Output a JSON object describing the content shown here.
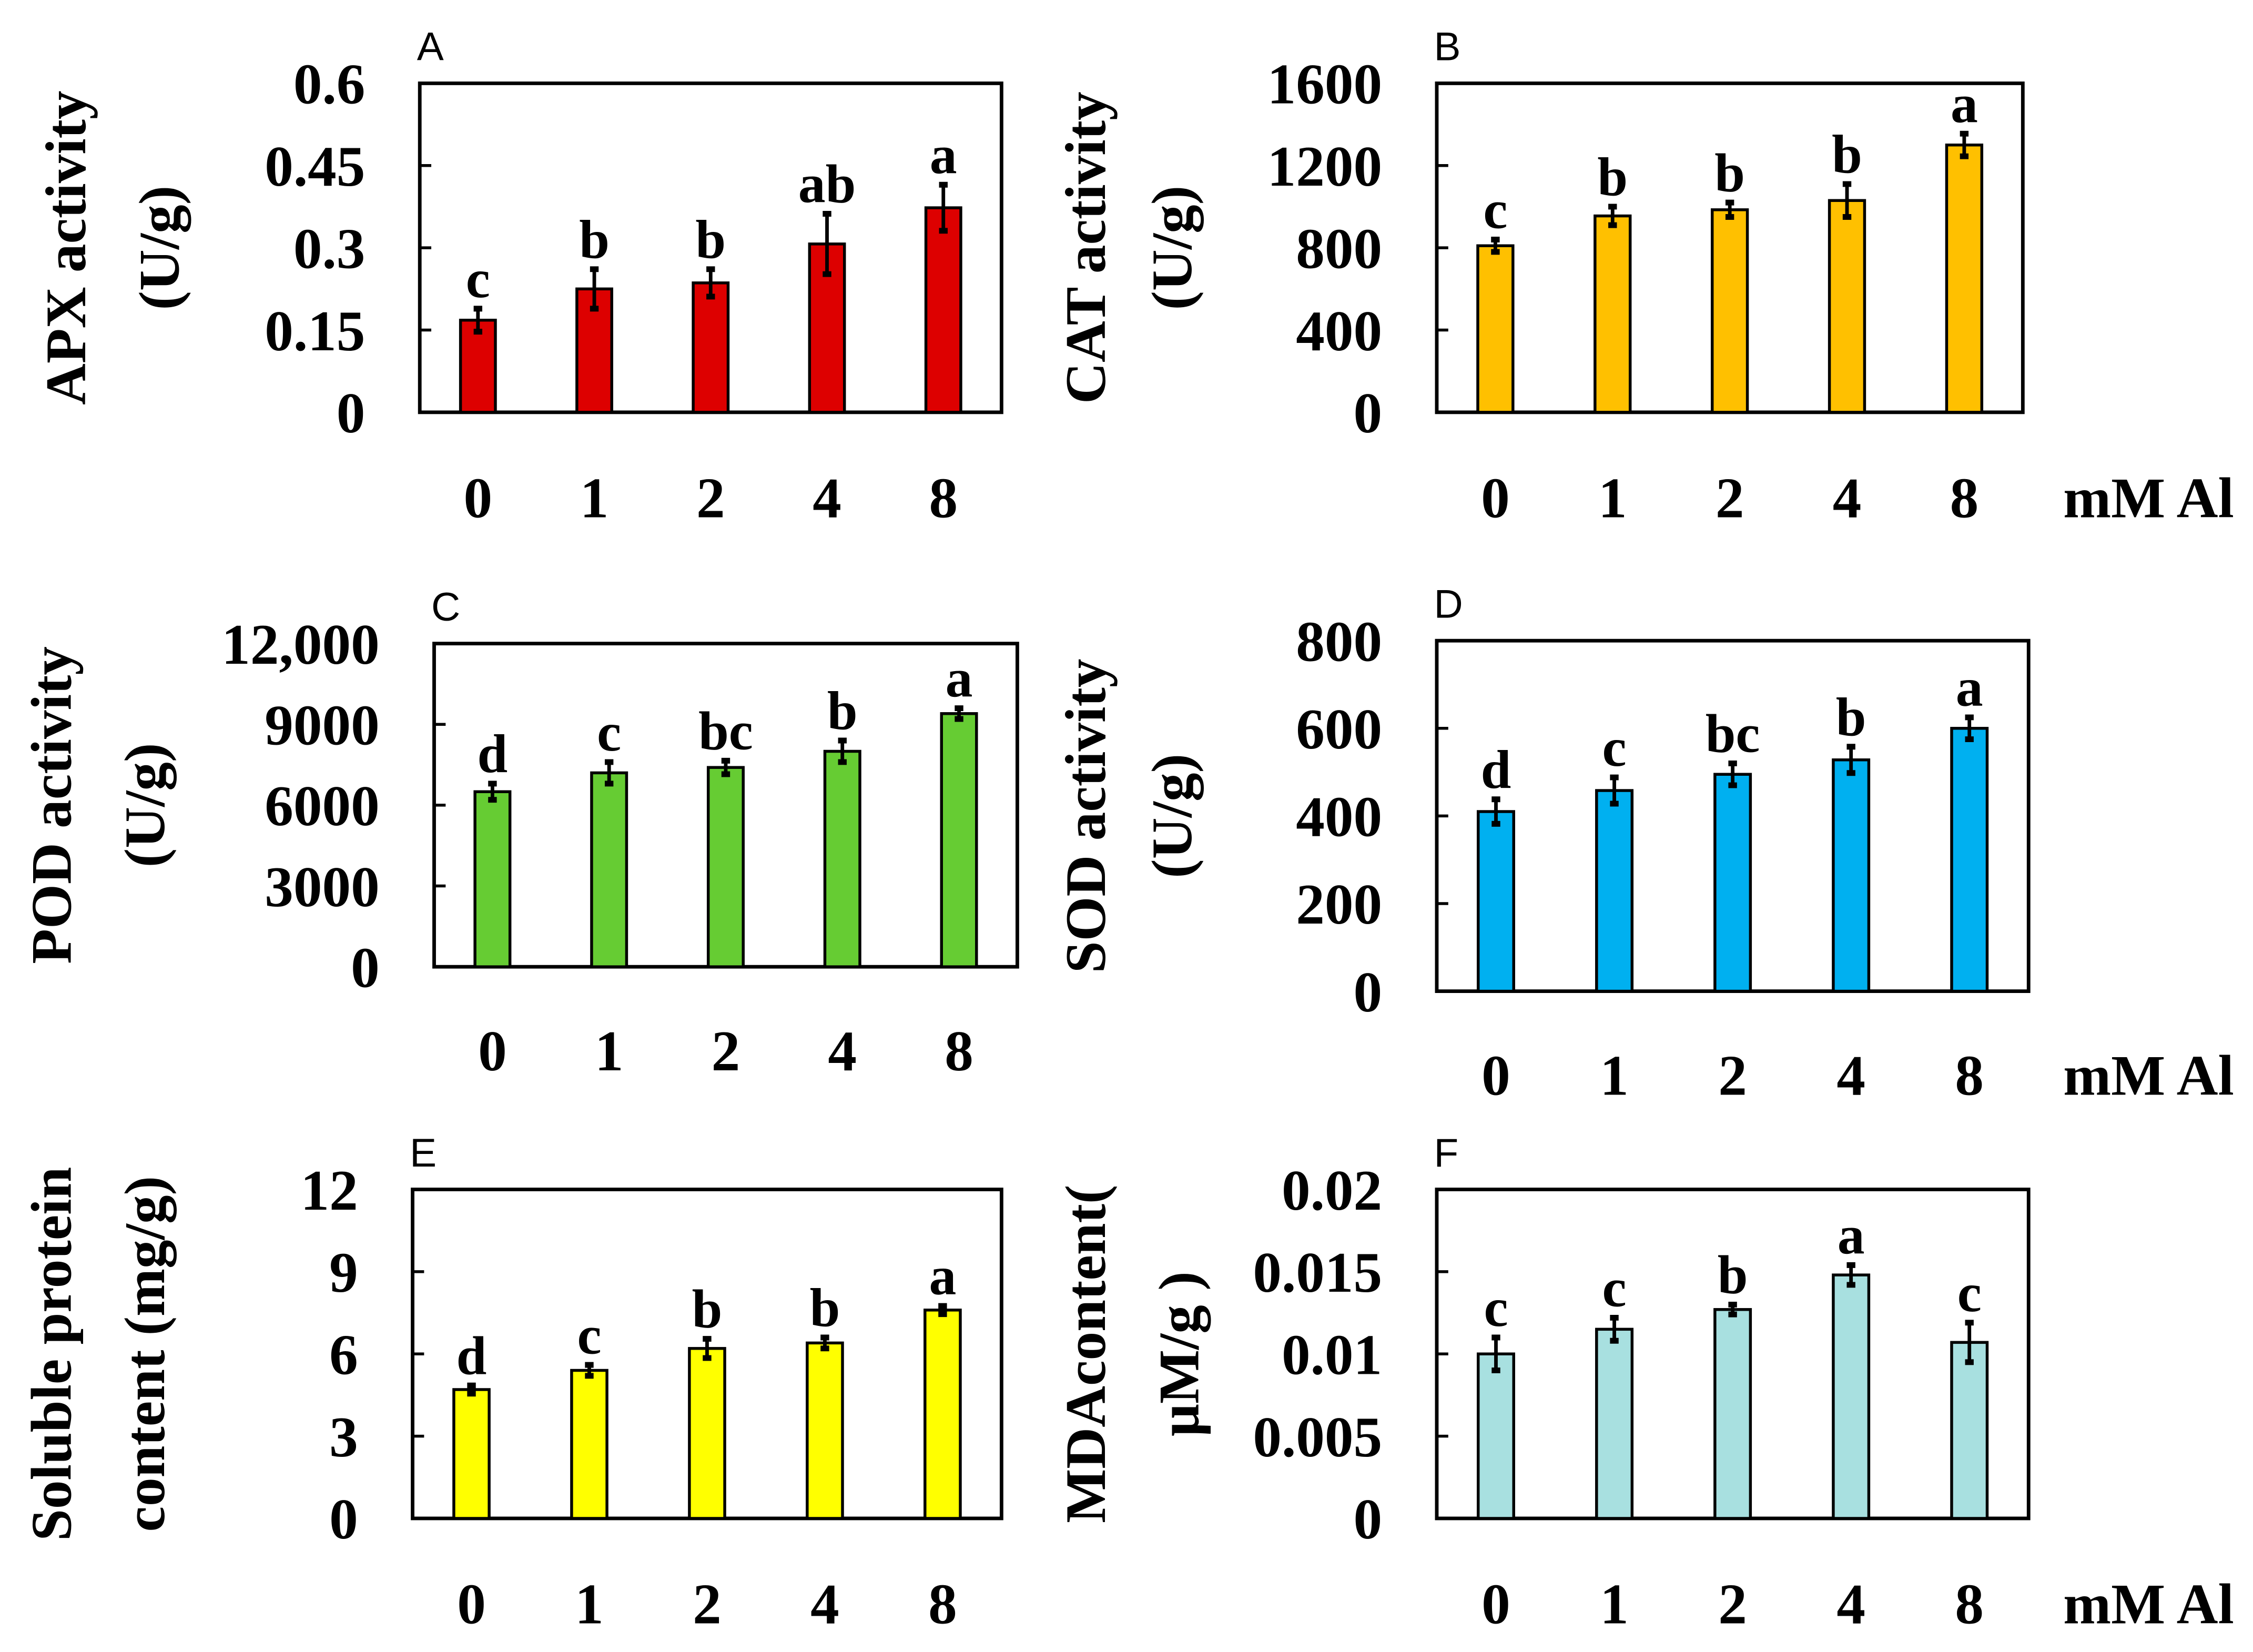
{
  "chart_data": [
    {
      "panel": "A",
      "type": "bar",
      "ylabel": [
        "APX activity",
        "(U/g)"
      ],
      "categories": [
        "0",
        "1",
        "2",
        "4",
        "8"
      ],
      "ylim": [
        0,
        0.6
      ],
      "yticks": [
        "0",
        "0.15",
        "0.3",
        "0.45",
        "0.6"
      ],
      "values": [
        0.168,
        0.225,
        0.236,
        0.307,
        0.373
      ],
      "errors": [
        0.021,
        0.036,
        0.025,
        0.055,
        0.042
      ],
      "letters": [
        "c",
        "b",
        "b",
        "ab",
        "a"
      ],
      "color": "#dd0000",
      "xunit": ""
    },
    {
      "panel": "B",
      "type": "bar",
      "ylabel": [
        "CAT activity",
        "(U/g)"
      ],
      "categories": [
        "0",
        "1",
        "2",
        "4",
        "8"
      ],
      "ylim": [
        0,
        1600
      ],
      "yticks": [
        "0",
        "400",
        "800",
        "1200",
        "1600"
      ],
      "values": [
        810,
        955,
        985,
        1030,
        1300
      ],
      "errors": [
        30,
        45,
        35,
        80,
        55
      ],
      "letters": [
        "c",
        "b",
        "b",
        "b",
        "a"
      ],
      "color": "#ffc000",
      "xunit": "mM Al"
    },
    {
      "panel": "C",
      "type": "bar",
      "ylabel": [
        "POD activity",
        "(U/g)"
      ],
      "categories": [
        "0",
        "1",
        "2",
        "4",
        "8"
      ],
      "ylim": [
        0,
        12000
      ],
      "yticks": [
        "0",
        "3000",
        "6000",
        "9000",
        "12,000"
      ],
      "values": [
        6500,
        7200,
        7400,
        8000,
        9400
      ],
      "errors": [
        300,
        400,
        250,
        400,
        200
      ],
      "letters": [
        "d",
        "c",
        "bc",
        "b",
        "a"
      ],
      "color": "#66cc33",
      "xunit": ""
    },
    {
      "panel": "D",
      "type": "bar",
      "ylabel": [
        "SOD activity",
        "(U/g)"
      ],
      "categories": [
        "0",
        "1",
        "2",
        "4",
        "8"
      ],
      "ylim": [
        0,
        800
      ],
      "yticks": [
        "0",
        "200",
        "400",
        "600",
        "800"
      ],
      "values": [
        410,
        458,
        495,
        528,
        600
      ],
      "errors": [
        28,
        30,
        25,
        30,
        25
      ],
      "letters": [
        "d",
        "c",
        "bc",
        "b",
        "a"
      ],
      "color": "#00b0f0",
      "xunit": "mM Al"
    },
    {
      "panel": "E",
      "type": "bar",
      "ylabel": [
        "Soluble protein",
        "content (mg/g)"
      ],
      "categories": [
        "0",
        "1",
        "2",
        "4",
        "8"
      ],
      "ylim": [
        0,
        12
      ],
      "yticks": [
        "0",
        "3",
        "6",
        "9",
        "12"
      ],
      "values": [
        4.7,
        5.4,
        6.2,
        6.4,
        7.6
      ],
      "errors": [
        0.15,
        0.2,
        0.35,
        0.2,
        0.15
      ],
      "letters": [
        "d",
        "c",
        "b",
        "b",
        "a"
      ],
      "color": "#ffff00",
      "xunit": ""
    },
    {
      "panel": "F",
      "type": "bar",
      "ylabel": [
        "MDAcontent(",
        "μM/g )"
      ],
      "categories": [
        "0",
        "1",
        "2",
        "4",
        "8"
      ],
      "ylim": [
        0,
        0.02
      ],
      "yticks": [
        "0",
        "0.005",
        "0.01",
        "0.015",
        "0.02"
      ],
      "values": [
        0.01,
        0.0115,
        0.0127,
        0.0148,
        0.0107
      ],
      "errors": [
        0.001,
        0.0007,
        0.0003,
        0.0006,
        0.0012
      ],
      "letters": [
        "c",
        "c",
        "b",
        "a",
        "c"
      ],
      "color": "#a8e0e0",
      "xunit": "mM Al"
    }
  ]
}
